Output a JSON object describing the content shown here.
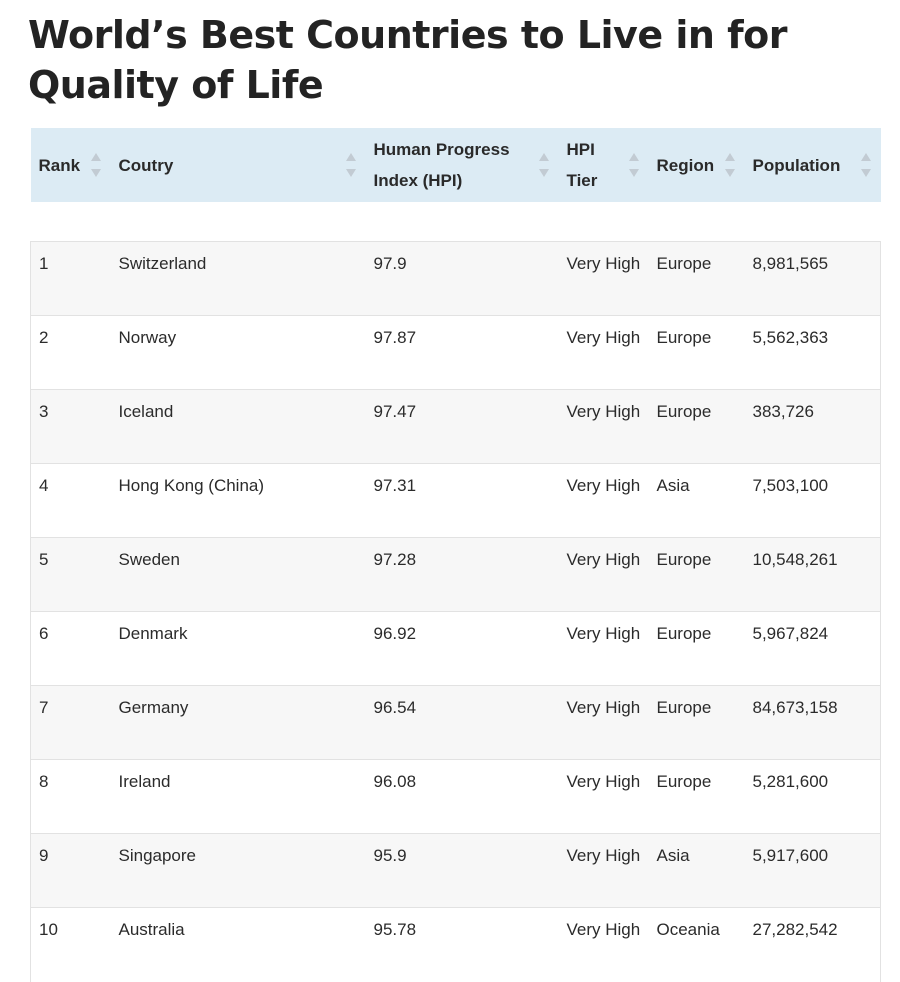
{
  "title": "World’s Best Countries to Live in for Quality of Life",
  "table": {
    "headers": [
      "Rank",
      "Coutry",
      "Human Progress Index (HPI)",
      "HPI Tier",
      "Region",
      "Population"
    ],
    "rows": [
      [
        "1",
        "Switzerland",
        "97.9",
        "Very High",
        "Europe",
        "8,981,565"
      ],
      [
        "2",
        "Norway",
        "97.87",
        "Very High",
        "Europe",
        "5,562,363"
      ],
      [
        "3",
        "Iceland",
        "97.47",
        "Very High",
        "Europe",
        "383,726"
      ],
      [
        "4",
        "Hong Kong (China)",
        "97.31",
        "Very High",
        "Asia",
        "7,503,100"
      ],
      [
        "5",
        "Sweden",
        "97.28",
        "Very High",
        "Europe",
        "10,548,261"
      ],
      [
        "6",
        "Denmark",
        "96.92",
        "Very High",
        "Europe",
        "5,967,824"
      ],
      [
        "7",
        "Germany",
        "96.54",
        "Very High",
        "Europe",
        "84,673,158"
      ],
      [
        "8",
        "Ireland",
        "96.08",
        "Very High",
        "Europe",
        "5,281,600"
      ],
      [
        "9",
        "Singapore",
        "95.9",
        "Very High",
        "Asia",
        "5,917,600"
      ],
      [
        "10",
        "Australia",
        "95.78",
        "Very High",
        "Oceania",
        "27,282,542"
      ]
    ]
  },
  "colors": {
    "header_background": "#dcebf4",
    "sort_icon": "#c2cbd3",
    "row_alt_background": "#f7f7f7"
  },
  "icons": {
    "sort": "sort-icon"
  }
}
